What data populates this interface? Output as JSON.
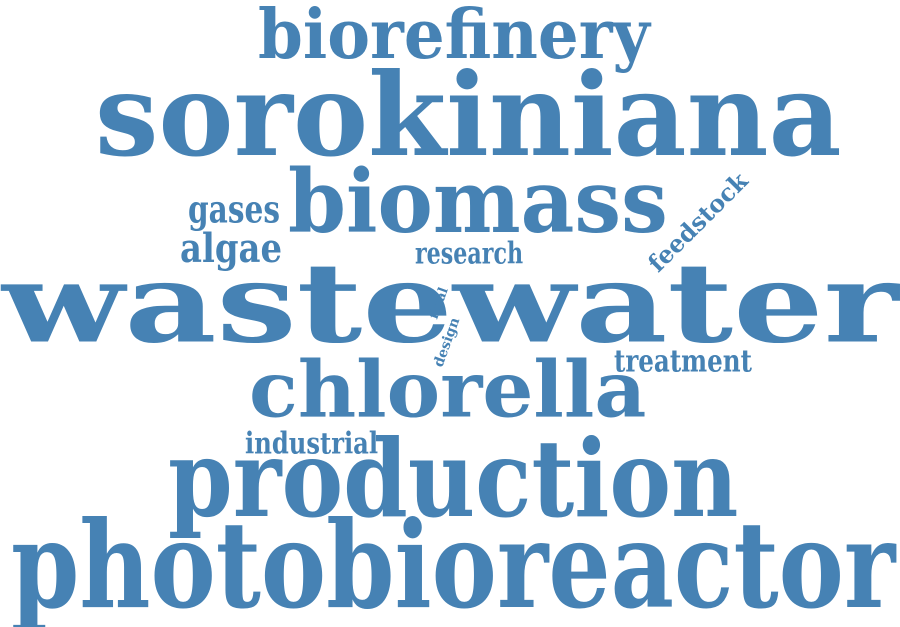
{
  "colors": {
    "word": "#4682b4",
    "background": "#ffffff"
  },
  "words": {
    "biorefinery": "biorefinery",
    "sorokiniana": "sorokiniana",
    "biomass": "biomass",
    "gases": "gases",
    "algae": "algae",
    "feedstock": "feedstock",
    "research": "research",
    "wastewater": "wastewater",
    "final": "final",
    "design": "design",
    "treatment": "treatment",
    "chlorella": "chlorella",
    "industrial": "industrial",
    "production": "production",
    "photobioreactor": "photobioreactor"
  }
}
